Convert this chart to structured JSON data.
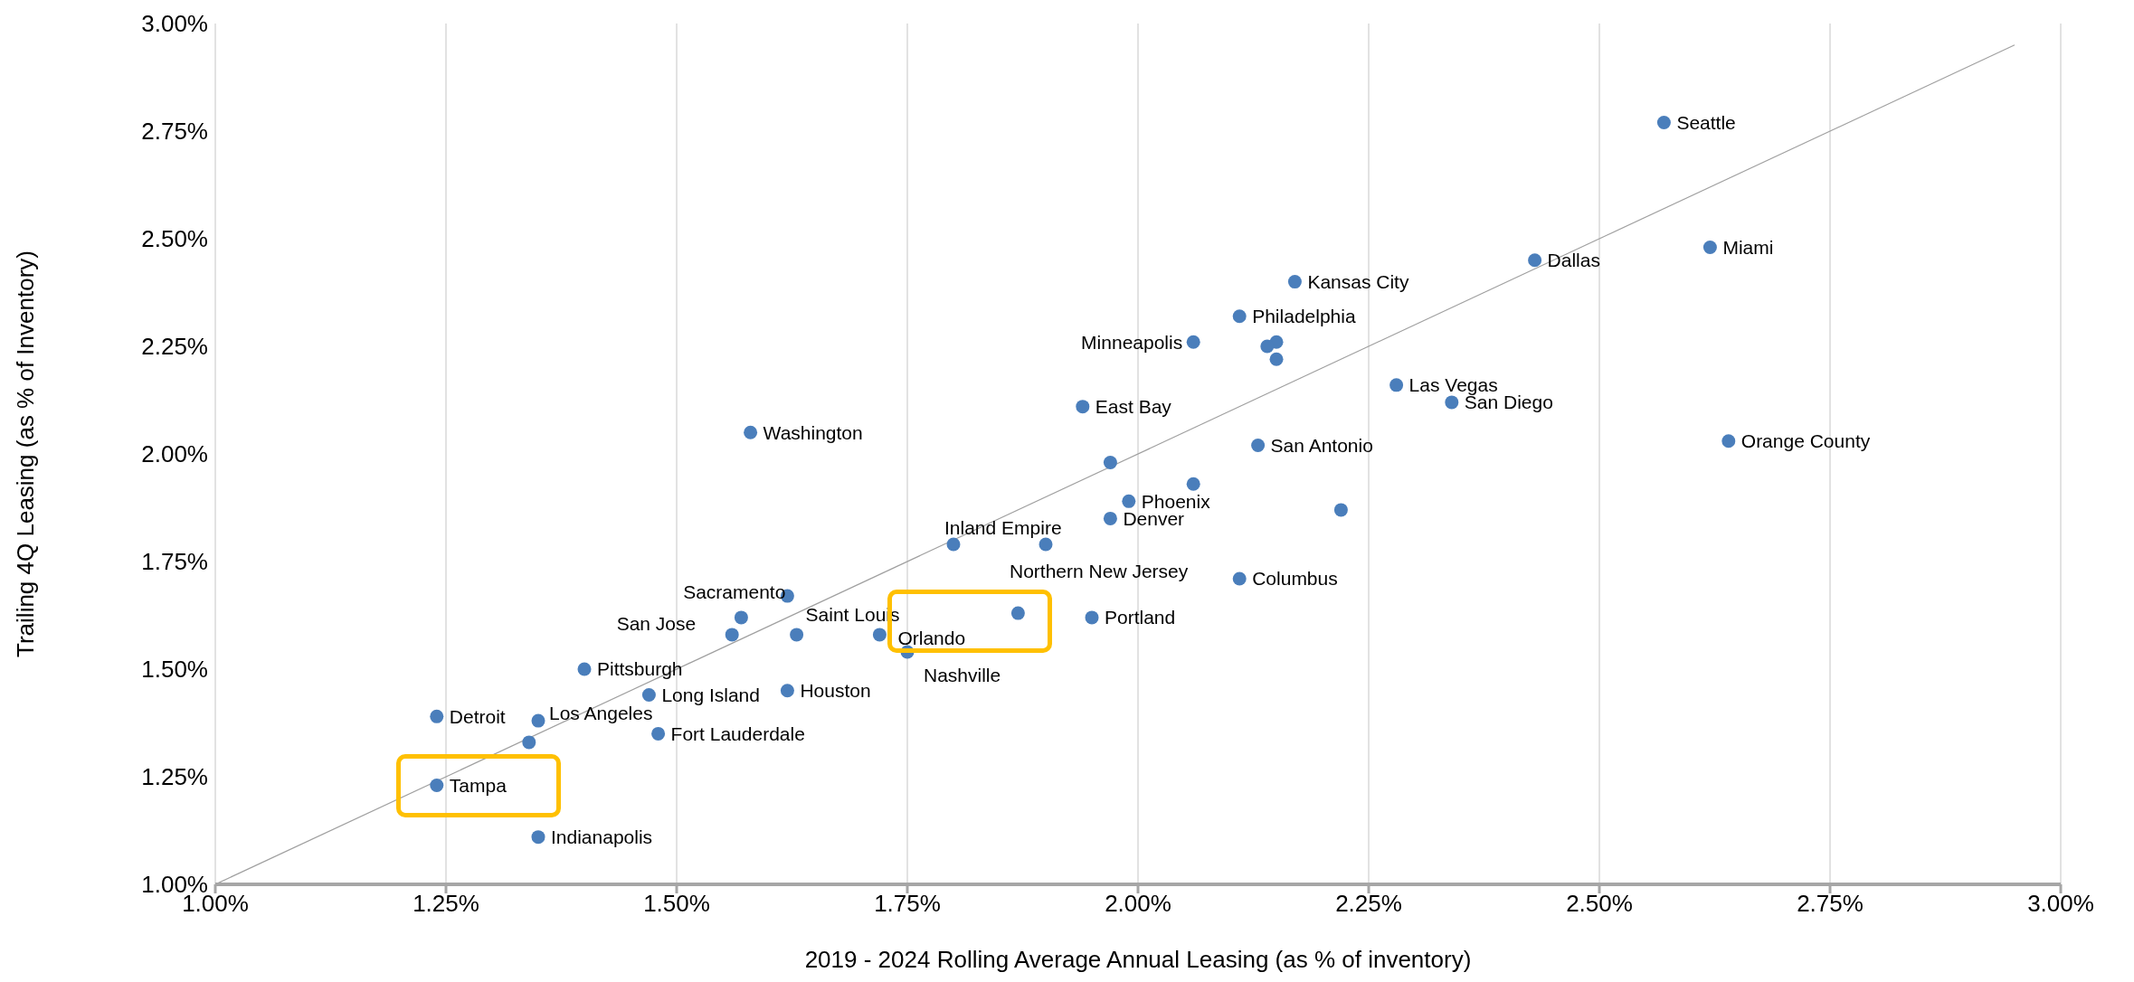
{
  "chart_data": {
    "type": "scatter",
    "xlabel": "2019 - 2024 Rolling Average Annual Leasing (as % of inventory)",
    "ylabel": "Trailing 4Q Leasing (as % of Inventory)",
    "xlim": [
      1.0,
      3.0
    ],
    "ylim": [
      1.0,
      3.0
    ],
    "xticks": [
      {
        "value": 1.0,
        "label": "1.00%"
      },
      {
        "value": 1.25,
        "label": "1.25%"
      },
      {
        "value": 1.5,
        "label": "1.50%"
      },
      {
        "value": 1.75,
        "label": "1.75%"
      },
      {
        "value": 2.0,
        "label": "2.00%"
      },
      {
        "value": 2.25,
        "label": "2.25%"
      },
      {
        "value": 2.5,
        "label": "2.50%"
      },
      {
        "value": 2.75,
        "label": "2.75%"
      },
      {
        "value": 3.0,
        "label": "3.00%"
      }
    ],
    "yticks": [
      {
        "value": 1.0,
        "label": "1.00%"
      },
      {
        "value": 1.25,
        "label": "1.25%"
      },
      {
        "value": 1.5,
        "label": "1.50%"
      },
      {
        "value": 1.75,
        "label": "1.75%"
      },
      {
        "value": 2.0,
        "label": "2.00%"
      },
      {
        "value": 2.25,
        "label": "2.25%"
      },
      {
        "value": 2.5,
        "label": "2.50%"
      },
      {
        "value": 2.75,
        "label": "2.75%"
      },
      {
        "value": 3.0,
        "label": "3.00%"
      }
    ],
    "grid": "x",
    "legend": false,
    "series": [
      {
        "color": "#4a7ebb",
        "marker": "circle",
        "x": [
          2.57,
          2.62,
          2.43,
          2.17,
          2.11,
          2.06,
          2.15,
          2.14,
          2.15,
          2.28,
          2.34,
          2.64,
          1.94,
          1.58,
          2.13,
          1.97,
          2.06,
          1.99,
          1.97,
          2.22,
          1.8,
          1.9,
          2.11,
          1.62,
          1.57,
          1.56,
          1.63,
          1.72,
          1.87,
          1.95,
          1.75,
          1.4,
          1.62,
          1.47,
          1.24,
          1.35,
          1.34,
          1.48,
          1.24,
          1.35
        ],
        "values": [
          2.77,
          2.48,
          2.45,
          2.4,
          2.32,
          2.26,
          2.26,
          2.25,
          2.22,
          2.16,
          2.12,
          2.03,
          2.11,
          2.05,
          2.02,
          1.98,
          1.93,
          1.89,
          1.85,
          1.87,
          1.79,
          1.79,
          1.71,
          1.67,
          1.62,
          1.58,
          1.58,
          1.58,
          1.63,
          1.62,
          1.54,
          1.5,
          1.45,
          1.44,
          1.39,
          1.38,
          1.33,
          1.35,
          1.23,
          1.11
        ]
      },
      {
        "type": "line",
        "color": "#a0a0a0",
        "marker": "none",
        "x": [
          1.0,
          2.95
        ],
        "values": [
          1.0,
          2.95
        ]
      }
    ],
    "annotations": [
      {
        "text": "Seattle",
        "x": 2.57,
        "y": 2.77
      },
      {
        "text": "Miami",
        "x": 2.62,
        "y": 2.48
      },
      {
        "text": "Dallas",
        "x": 2.43,
        "y": 2.45
      },
      {
        "text": "Kansas City",
        "x": 2.17,
        "y": 2.4
      },
      {
        "text": "Philadelphia",
        "x": 2.11,
        "y": 2.32
      },
      {
        "text": "Minneapolis",
        "x": 2.06,
        "y": 2.26
      },
      {
        "text": "Las Vegas",
        "x": 2.28,
        "y": 2.16
      },
      {
        "text": "San Diego",
        "x": 2.34,
        "y": 2.12
      },
      {
        "text": "Orange County",
        "x": 2.64,
        "y": 2.03
      },
      {
        "text": "East Bay",
        "x": 1.94,
        "y": 2.11
      },
      {
        "text": "Washington",
        "x": 1.58,
        "y": 2.05
      },
      {
        "text": "San Antonio",
        "x": 2.13,
        "y": 2.02
      },
      {
        "text": "Phoenix",
        "x": 1.99,
        "y": 1.89
      },
      {
        "text": "Denver",
        "x": 1.97,
        "y": 1.85
      },
      {
        "text": "Inland Empire",
        "x": 1.8,
        "y": 1.79
      },
      {
        "text": "Northern New Jersey",
        "x": 1.9,
        "y": 1.79
      },
      {
        "text": "Columbus",
        "x": 2.11,
        "y": 1.71
      },
      {
        "text": "Sacramento",
        "x": 1.62,
        "y": 1.67
      },
      {
        "text": "San Jose",
        "x": 1.56,
        "y": 1.58
      },
      {
        "text": "Saint Louis",
        "x": 1.63,
        "y": 1.58
      },
      {
        "text": "Orlando",
        "x": 1.72,
        "y": 1.58
      },
      {
        "text": "Portland",
        "x": 1.95,
        "y": 1.62
      },
      {
        "text": "Nashville",
        "x": 1.75,
        "y": 1.54
      },
      {
        "text": "Pittsburgh",
        "x": 1.4,
        "y": 1.5
      },
      {
        "text": "Houston",
        "x": 1.62,
        "y": 1.45
      },
      {
        "text": "Long Island",
        "x": 1.47,
        "y": 1.44
      },
      {
        "text": "Detroit",
        "x": 1.24,
        "y": 1.39
      },
      {
        "text": "Los Angeles",
        "x": 1.35,
        "y": 1.38
      },
      {
        "text": "Fort Lauderdale",
        "x": 1.48,
        "y": 1.35
      },
      {
        "text": "Tampa",
        "x": 1.24,
        "y": 1.23
      },
      {
        "text": "Indianapolis",
        "x": 1.35,
        "y": 1.11
      }
    ]
  }
}
